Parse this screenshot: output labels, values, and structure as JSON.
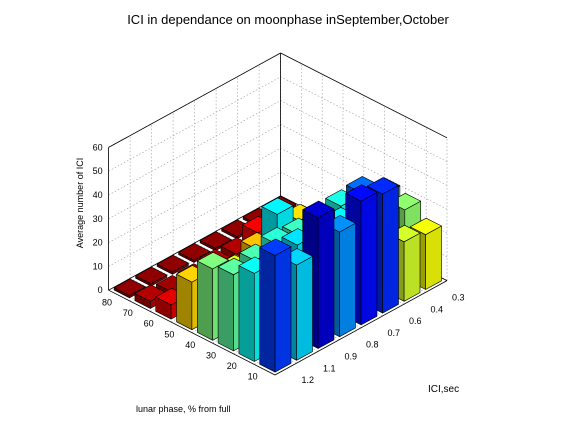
{
  "chart_data": {
    "type": "bar3d",
    "title": "ICI in dependance on moonphase inSeptember,October",
    "xlabel": "ICI,sec",
    "ylabel": "lunar phase, % from full",
    "zlabel": "Average number of ICI",
    "x_ticks": [
      "0.3",
      "0.4",
      "0.6",
      "0.7",
      "0.8",
      "0.9",
      "1.1",
      "1.2"
    ],
    "y_ticks": [
      "10",
      "20",
      "30",
      "40",
      "50",
      "60",
      "70",
      "80"
    ],
    "z_ticks": [
      "0",
      "10",
      "20",
      "30",
      "40",
      "50",
      "60"
    ],
    "zlim": [
      0,
      60
    ],
    "grid": true,
    "colormap": "jet",
    "values": [
      [
        23,
        29,
        31,
        18,
        11,
        5,
        2,
        1
      ],
      [
        25,
        31,
        34,
        14,
        8,
        4,
        2,
        1
      ],
      [
        50,
        46,
        36,
        24,
        21,
        16,
        7,
        1
      ],
      [
        52,
        38,
        22,
        18,
        6,
        4,
        3,
        1
      ],
      [
        44,
        45,
        34,
        38,
        19,
        5,
        3,
        1
      ],
      [
        55,
        39,
        35,
        12,
        15,
        4,
        2,
        1
      ],
      [
        40,
        35,
        33,
        24,
        15,
        5,
        2,
        1
      ],
      [
        49,
        37,
        32,
        30,
        20,
        6,
        3,
        1
      ]
    ]
  }
}
